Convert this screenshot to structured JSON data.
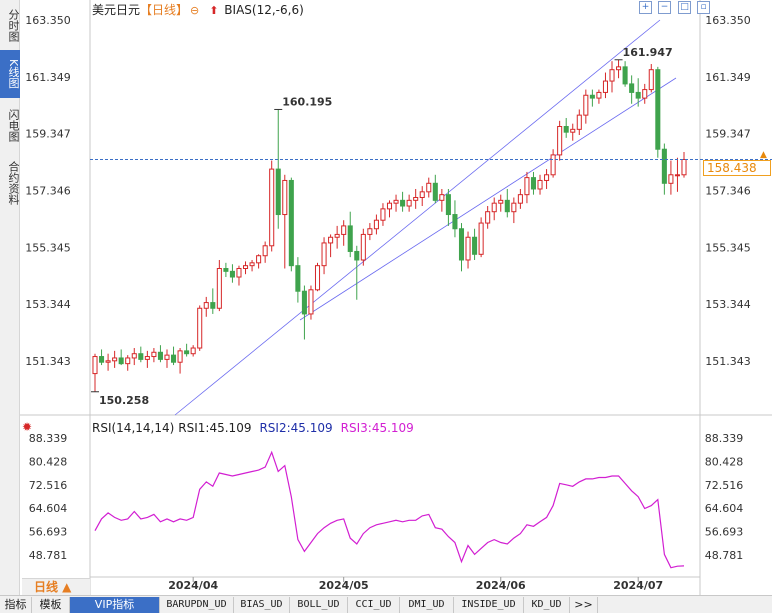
{
  "sidebar": {
    "tabs": [
      {
        "label": "分时图",
        "active": false
      },
      {
        "label": "K线图",
        "active": true
      },
      {
        "label": "闪电图",
        "active": false
      },
      {
        "label": "合约资料",
        "active": false
      }
    ]
  },
  "header": {
    "symbol": "美元日元",
    "period": "【日线】",
    "indicator": "BIAS(12,-6,6)",
    "window_buttons": [
      "expand-icon",
      "shrink-icon",
      "fullscreen-icon",
      "restore-icon"
    ]
  },
  "price_panel": {
    "y_ticks": [
      "163.350",
      "161.349",
      "159.347",
      "157.346",
      "155.345",
      "153.344",
      "151.343"
    ],
    "high_label": "161.947",
    "swing_high_label": "160.195",
    "low_label": "150.258",
    "current_price": "158.438"
  },
  "rsi_panel": {
    "title": "RSI(14,14,14)",
    "rsi1": "RSI1:45.109",
    "rsi2": "RSI2:45.109",
    "rsi3": "RSI3:45.109",
    "y_ticks": [
      "88.339",
      "80.428",
      "72.516",
      "64.604",
      "56.693",
      "48.781"
    ]
  },
  "x_axis": {
    "labels": [
      "2024/04",
      "2024/05",
      "2024/06",
      "2024/07"
    ]
  },
  "period_button": "日线 ▲",
  "indicator_tabs": [
    "指标",
    "模板",
    "VIP指标",
    "BARUPDN_UD",
    "BIAS_UD",
    "BOLL_UD",
    "CCI_UD",
    "DMI_UD",
    "INSIDE_UD",
    "KD_UD",
    ">>"
  ],
  "active_indicator_tab": "VIP指标",
  "colors": {
    "up": "#d62728",
    "down": "#3fa34d",
    "channel": "#6a6af0",
    "rsi_line": "#d21fd2",
    "price_line": "#3b6fc6",
    "label_high": "#d62728",
    "label_low": "#3fa34d"
  },
  "chart_data": {
    "type": "candlestick",
    "symbol": "USD/JPY",
    "ylim": [
      150.258,
      163.35
    ],
    "candles": [
      {
        "o": 150.9,
        "h": 151.6,
        "l": 150.26,
        "c": 151.5
      },
      {
        "o": 151.5,
        "h": 151.75,
        "l": 151.2,
        "c": 151.3
      },
      {
        "o": 151.3,
        "h": 151.6,
        "l": 151.0,
        "c": 151.35
      },
      {
        "o": 151.35,
        "h": 151.7,
        "l": 151.1,
        "c": 151.45
      },
      {
        "o": 151.45,
        "h": 151.75,
        "l": 151.2,
        "c": 151.25
      },
      {
        "o": 151.25,
        "h": 151.55,
        "l": 151.0,
        "c": 151.45
      },
      {
        "o": 151.45,
        "h": 151.8,
        "l": 151.2,
        "c": 151.6
      },
      {
        "o": 151.6,
        "h": 151.85,
        "l": 151.3,
        "c": 151.4
      },
      {
        "o": 151.4,
        "h": 151.7,
        "l": 151.1,
        "c": 151.5
      },
      {
        "o": 151.5,
        "h": 151.8,
        "l": 151.3,
        "c": 151.65
      },
      {
        "o": 151.65,
        "h": 151.9,
        "l": 151.3,
        "c": 151.4
      },
      {
        "o": 151.4,
        "h": 151.75,
        "l": 151.1,
        "c": 151.55
      },
      {
        "o": 151.55,
        "h": 151.85,
        "l": 151.2,
        "c": 151.3
      },
      {
        "o": 151.3,
        "h": 151.8,
        "l": 150.9,
        "c": 151.7
      },
      {
        "o": 151.7,
        "h": 151.95,
        "l": 151.5,
        "c": 151.6
      },
      {
        "o": 151.6,
        "h": 151.9,
        "l": 151.5,
        "c": 151.8
      },
      {
        "o": 151.8,
        "h": 153.3,
        "l": 151.7,
        "c": 153.2
      },
      {
        "o": 153.2,
        "h": 153.6,
        "l": 152.9,
        "c": 153.4
      },
      {
        "o": 153.4,
        "h": 153.9,
        "l": 153.0,
        "c": 153.2
      },
      {
        "o": 153.2,
        "h": 154.9,
        "l": 153.1,
        "c": 154.6
      },
      {
        "o": 154.6,
        "h": 154.8,
        "l": 154.3,
        "c": 154.5
      },
      {
        "o": 154.5,
        "h": 154.75,
        "l": 154.1,
        "c": 154.3
      },
      {
        "o": 154.3,
        "h": 154.7,
        "l": 154.0,
        "c": 154.6
      },
      {
        "o": 154.6,
        "h": 154.85,
        "l": 154.4,
        "c": 154.7
      },
      {
        "o": 154.7,
        "h": 154.9,
        "l": 154.5,
        "c": 154.8
      },
      {
        "o": 154.8,
        "h": 155.1,
        "l": 154.6,
        "c": 155.05
      },
      {
        "o": 155.05,
        "h": 155.55,
        "l": 154.8,
        "c": 155.4
      },
      {
        "o": 155.4,
        "h": 158.4,
        "l": 155.2,
        "c": 158.1
      },
      {
        "o": 158.1,
        "h": 160.2,
        "l": 156.0,
        "c": 156.5
      },
      {
        "o": 156.5,
        "h": 157.9,
        "l": 154.6,
        "c": 157.7
      },
      {
        "o": 157.7,
        "h": 157.8,
        "l": 154.5,
        "c": 154.7
      },
      {
        "o": 154.7,
        "h": 155.0,
        "l": 153.4,
        "c": 153.8
      },
      {
        "o": 153.8,
        "h": 154.0,
        "l": 152.1,
        "c": 153.0
      },
      {
        "o": 153.0,
        "h": 154.0,
        "l": 152.8,
        "c": 153.85
      },
      {
        "o": 153.85,
        "h": 154.8,
        "l": 153.8,
        "c": 154.7
      },
      {
        "o": 154.7,
        "h": 155.7,
        "l": 154.4,
        "c": 155.5
      },
      {
        "o": 155.5,
        "h": 155.8,
        "l": 155.0,
        "c": 155.7
      },
      {
        "o": 155.7,
        "h": 156.1,
        "l": 155.3,
        "c": 155.8
      },
      {
        "o": 155.8,
        "h": 156.3,
        "l": 155.4,
        "c": 156.1
      },
      {
        "o": 156.1,
        "h": 156.6,
        "l": 155.0,
        "c": 155.2
      },
      {
        "o": 155.2,
        "h": 155.4,
        "l": 153.5,
        "c": 154.9
      },
      {
        "o": 154.9,
        "h": 156.0,
        "l": 154.7,
        "c": 155.8
      },
      {
        "o": 155.8,
        "h": 156.2,
        "l": 155.6,
        "c": 156.0
      },
      {
        "o": 156.0,
        "h": 156.5,
        "l": 155.8,
        "c": 156.3
      },
      {
        "o": 156.3,
        "h": 156.9,
        "l": 156.1,
        "c": 156.7
      },
      {
        "o": 156.7,
        "h": 157.0,
        "l": 156.4,
        "c": 156.9
      },
      {
        "o": 156.9,
        "h": 157.2,
        "l": 156.6,
        "c": 157.0
      },
      {
        "o": 157.0,
        "h": 157.3,
        "l": 156.6,
        "c": 156.8
      },
      {
        "o": 156.8,
        "h": 157.2,
        "l": 156.6,
        "c": 157.0
      },
      {
        "o": 157.0,
        "h": 157.4,
        "l": 156.7,
        "c": 157.1
      },
      {
        "o": 157.1,
        "h": 157.5,
        "l": 156.8,
        "c": 157.3
      },
      {
        "o": 157.3,
        "h": 157.8,
        "l": 157.1,
        "c": 157.6
      },
      {
        "o": 157.6,
        "h": 157.9,
        "l": 156.9,
        "c": 157.0
      },
      {
        "o": 157.0,
        "h": 157.4,
        "l": 156.6,
        "c": 157.2
      },
      {
        "o": 157.2,
        "h": 157.4,
        "l": 156.1,
        "c": 156.5
      },
      {
        "o": 156.5,
        "h": 157.0,
        "l": 155.7,
        "c": 156.0
      },
      {
        "o": 156.0,
        "h": 156.2,
        "l": 154.5,
        "c": 154.9
      },
      {
        "o": 154.9,
        "h": 155.9,
        "l": 154.6,
        "c": 155.7
      },
      {
        "o": 155.7,
        "h": 156.0,
        "l": 154.9,
        "c": 155.1
      },
      {
        "o": 155.1,
        "h": 156.4,
        "l": 155.0,
        "c": 156.2
      },
      {
        "o": 156.2,
        "h": 156.8,
        "l": 156.0,
        "c": 156.6
      },
      {
        "o": 156.6,
        "h": 157.1,
        "l": 156.3,
        "c": 156.9
      },
      {
        "o": 156.9,
        "h": 157.2,
        "l": 156.6,
        "c": 157.0
      },
      {
        "o": 157.0,
        "h": 157.4,
        "l": 156.4,
        "c": 156.6
      },
      {
        "o": 156.6,
        "h": 157.1,
        "l": 156.2,
        "c": 156.9
      },
      {
        "o": 156.9,
        "h": 157.4,
        "l": 156.7,
        "c": 157.2
      },
      {
        "o": 157.2,
        "h": 158.0,
        "l": 156.9,
        "c": 157.8
      },
      {
        "o": 157.8,
        "h": 158.0,
        "l": 157.2,
        "c": 157.4
      },
      {
        "o": 157.4,
        "h": 157.9,
        "l": 157.2,
        "c": 157.7
      },
      {
        "o": 157.7,
        "h": 158.1,
        "l": 157.4,
        "c": 157.9
      },
      {
        "o": 157.9,
        "h": 158.8,
        "l": 157.8,
        "c": 158.6
      },
      {
        "o": 158.6,
        "h": 159.8,
        "l": 158.4,
        "c": 159.6
      },
      {
        "o": 159.6,
        "h": 159.9,
        "l": 159.2,
        "c": 159.4
      },
      {
        "o": 159.4,
        "h": 159.7,
        "l": 159.1,
        "c": 159.5
      },
      {
        "o": 159.5,
        "h": 160.2,
        "l": 159.3,
        "c": 160.0
      },
      {
        "o": 160.0,
        "h": 160.9,
        "l": 159.7,
        "c": 160.7
      },
      {
        "o": 160.7,
        "h": 160.9,
        "l": 160.3,
        "c": 160.6
      },
      {
        "o": 160.6,
        "h": 160.9,
        "l": 160.4,
        "c": 160.8
      },
      {
        "o": 160.8,
        "h": 161.5,
        "l": 160.6,
        "c": 161.2
      },
      {
        "o": 161.2,
        "h": 161.9,
        "l": 160.8,
        "c": 161.6
      },
      {
        "o": 161.6,
        "h": 161.95,
        "l": 161.3,
        "c": 161.7
      },
      {
        "o": 161.7,
        "h": 161.9,
        "l": 161.0,
        "c": 161.1
      },
      {
        "o": 161.1,
        "h": 161.4,
        "l": 160.4,
        "c": 160.8
      },
      {
        "o": 160.8,
        "h": 161.3,
        "l": 160.3,
        "c": 160.6
      },
      {
        "o": 160.6,
        "h": 161.1,
        "l": 160.4,
        "c": 160.9
      },
      {
        "o": 160.9,
        "h": 161.8,
        "l": 160.8,
        "c": 161.6
      },
      {
        "o": 161.6,
        "h": 161.7,
        "l": 158.5,
        "c": 158.8
      },
      {
        "o": 158.8,
        "h": 159.0,
        "l": 157.2,
        "c": 157.6
      },
      {
        "o": 157.6,
        "h": 158.4,
        "l": 157.2,
        "c": 157.9
      },
      {
        "o": 157.9,
        "h": 158.5,
        "l": 157.3,
        "c": 157.9
      },
      {
        "o": 157.9,
        "h": 158.7,
        "l": 157.8,
        "c": 158.438
      }
    ],
    "rsi": [
      57.0,
      61.0,
      63.0,
      61.5,
      60.5,
      61.0,
      63.5,
      61.0,
      61.5,
      62.5,
      60.0,
      61.0,
      60.0,
      61.0,
      60.5,
      61.5,
      71.0,
      73.5,
      72.0,
      76.5,
      76.0,
      75.5,
      76.0,
      76.5,
      77.0,
      77.5,
      78.5,
      83.5,
      77.0,
      79.0,
      68.5,
      54.0,
      50.0,
      53.0,
      56.0,
      58.0,
      59.5,
      60.5,
      61.0,
      54.5,
      52.5,
      56.0,
      58.0,
      59.0,
      59.5,
      60.0,
      60.5,
      60.0,
      60.5,
      60.5,
      62.0,
      62.5,
      58.0,
      57.5,
      55.0,
      53.0,
      46.5,
      52.0,
      49.0,
      51.0,
      53.0,
      54.0,
      53.0,
      52.5,
      54.5,
      56.0,
      59.0,
      58.5,
      60.0,
      61.5,
      65.5,
      73.0,
      72.5,
      72.0,
      73.5,
      74.5,
      74.5,
      75.0,
      75.0,
      75.5,
      75.5,
      73.0,
      70.5,
      68.5,
      64.5,
      65.5,
      67.5,
      49.0,
      44.5,
      45.0,
      45.109
    ]
  }
}
